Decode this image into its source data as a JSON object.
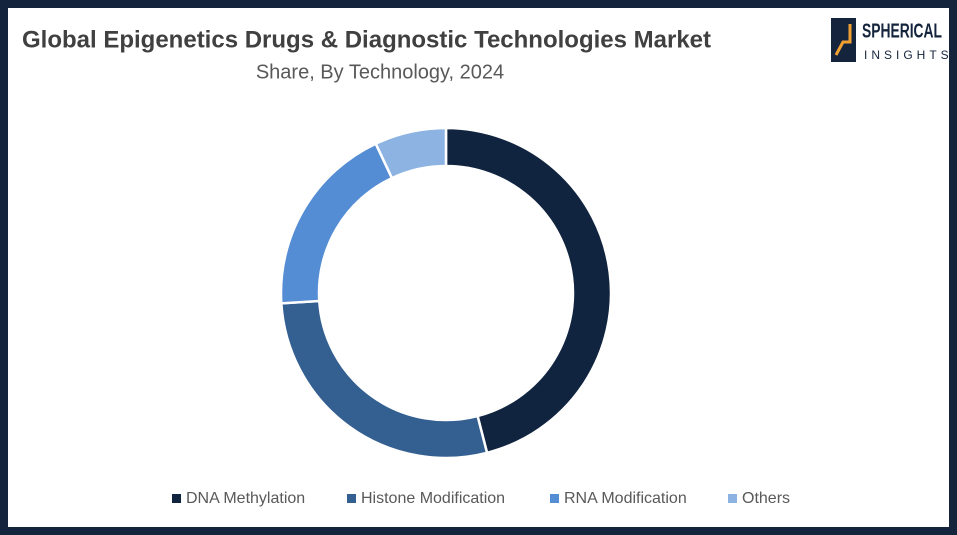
{
  "chart_data": {
    "type": "donut",
    "title": "Global Epigenetics Drugs & Diagnostic Technologies Market",
    "subtitle": "Share, By Technology, 2024",
    "categories": [
      "DNA Methylation",
      "Histone Modification",
      "RNA Modification",
      "Others"
    ],
    "values": [
      46,
      28,
      19,
      7
    ],
    "colors": [
      "#10243f",
      "#335f91",
      "#548dd4",
      "#8db3e2"
    ],
    "legend": "bottom"
  },
  "logo": {
    "line1": "SPHERICAL",
    "line2": "INSIGHTS"
  }
}
